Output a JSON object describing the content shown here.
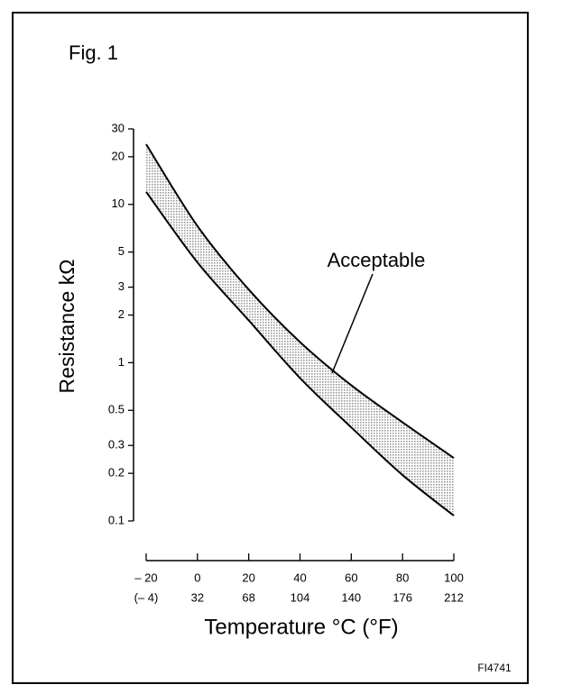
{
  "chart_data": {
    "type": "band",
    "title": "Fig. 1",
    "y_label": "Resistance kΩ",
    "x_label": "Temperature °C (°F)",
    "footnote": "FI4741",
    "annotation": "Acceptable",
    "x": [
      -20,
      0,
      20,
      40,
      60,
      80,
      100
    ],
    "series": [
      {
        "color": "#000000",
        "values": [
          24,
          7.3,
          2.9,
          1.35,
          0.72,
          0.42,
          0.25
        ]
      },
      {
        "color": "#000000",
        "values": [
          12,
          4.3,
          1.85,
          0.8,
          0.39,
          0.195,
          0.108
        ]
      }
    ],
    "band_fill": "#9a9a9a",
    "y_scale": "log",
    "xlim": [
      -20,
      100
    ],
    "xticks": [
      {
        "value": -20,
        "label": "– 20"
      },
      0,
      20,
      40,
      60,
      80,
      100
    ],
    "x2lim": [
      -4,
      212
    ],
    "x2ticks": [
      {
        "value": -4,
        "label": "(– 4)"
      },
      32,
      68,
      104,
      140,
      176,
      212
    ],
    "ylim": [
      0.1,
      30
    ],
    "yticks": [
      30,
      20,
      10,
      5,
      3,
      2,
      1,
      0.5,
      0.3,
      0.2,
      0.1
    ],
    "grid": false
  }
}
